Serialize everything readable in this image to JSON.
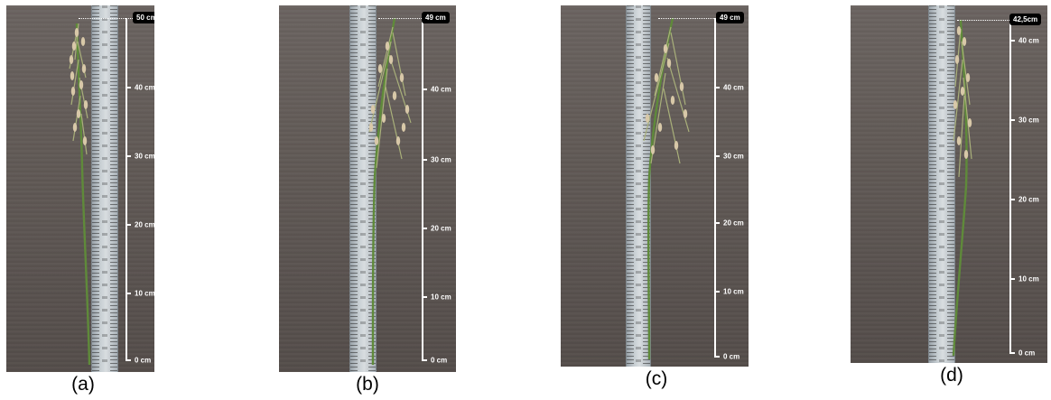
{
  "panels": [
    {
      "id": "a",
      "caption": "(a)",
      "length_badge": "50 cm",
      "scale_labels": [
        "40 cm",
        "30 cm",
        "20 cm",
        "10 cm",
        "0 cm"
      ]
    },
    {
      "id": "b",
      "caption": "(b)",
      "length_badge": "49 cm",
      "scale_labels": [
        "40 cm",
        "30 cm",
        "20 cm",
        "10 cm",
        "0 cm"
      ]
    },
    {
      "id": "c",
      "caption": "(c)",
      "length_badge": "49 cm",
      "scale_labels": [
        "40 cm",
        "30 cm",
        "20 cm",
        "10 cm",
        "0 cm"
      ]
    },
    {
      "id": "d",
      "caption": "(d)",
      "length_badge": "42,5cm",
      "scale_labels": [
        "40 cm",
        "30 cm",
        "20 cm",
        "10 cm",
        "0 cm"
      ]
    }
  ],
  "colors": {
    "background": "#5e5754",
    "ruler": "#c9d0d4",
    "stem": "#5f8a3a",
    "panicle": "#d8c8a8"
  }
}
